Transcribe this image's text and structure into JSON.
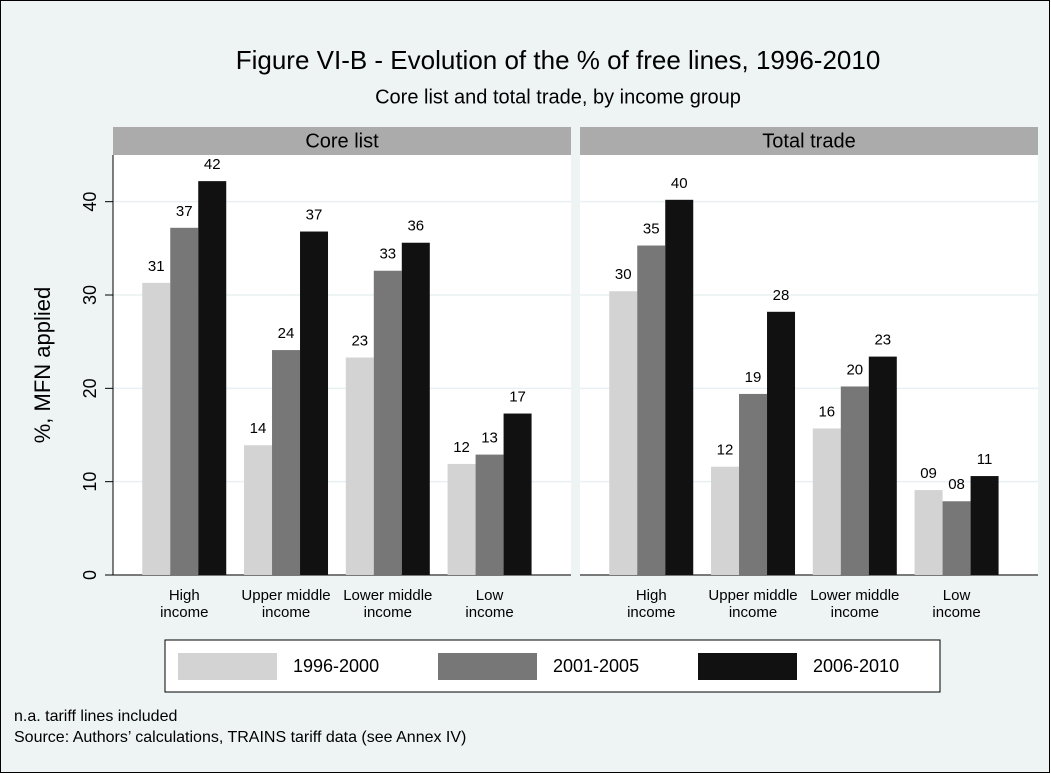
{
  "chart_data": {
    "type": "bar",
    "title": "Figure VI-B - Evolution of the % of free lines, 1996-2010",
    "subtitle": "Core list and total trade, by income group",
    "ylabel": "%, MFN applied",
    "categories": [
      "High income",
      "Upper middle income",
      "Lower middle income",
      "Low income"
    ],
    "ylim": [
      0,
      45
    ],
    "yticks": [
      0,
      10,
      20,
      30,
      40
    ],
    "grid": true,
    "series": [
      {
        "name": "1996-2000",
        "color": "#d3d3d3"
      },
      {
        "name": "2001-2005",
        "color": "#777777"
      },
      {
        "name": "2006-2010",
        "color": "#111111"
      }
    ],
    "panels": [
      {
        "title": "Core list",
        "series": [
          {
            "values": [
              31.3,
              13.9,
              23.3,
              11.9
            ],
            "value_labels": [
              "31",
              "14",
              "23",
              "12"
            ]
          },
          {
            "values": [
              37.2,
              24.1,
              32.6,
              12.9
            ],
            "value_labels": [
              "37",
              "24",
              "33",
              "13"
            ]
          },
          {
            "values": [
              42.2,
              36.8,
              35.6,
              17.3
            ],
            "value_labels": [
              "42",
              "37",
              "36",
              "17"
            ]
          }
        ]
      },
      {
        "title": "Total trade",
        "series": [
          {
            "values": [
              30.4,
              11.6,
              15.7,
              9.1
            ],
            "value_labels": [
              "30",
              "12",
              "16",
              "09"
            ]
          },
          {
            "values": [
              35.3,
              19.4,
              20.2,
              7.9
            ],
            "value_labels": [
              "35",
              "19",
              "20",
              "08"
            ]
          },
          {
            "values": [
              40.2,
              28.2,
              23.4,
              10.6
            ],
            "value_labels": [
              "40",
              "28",
              "23",
              "11"
            ]
          }
        ]
      }
    ],
    "notes": [
      "n.a. tariff lines included",
      "Source: Authors’ calculations, TRAINS tariff data (see Annex IV)"
    ]
  }
}
